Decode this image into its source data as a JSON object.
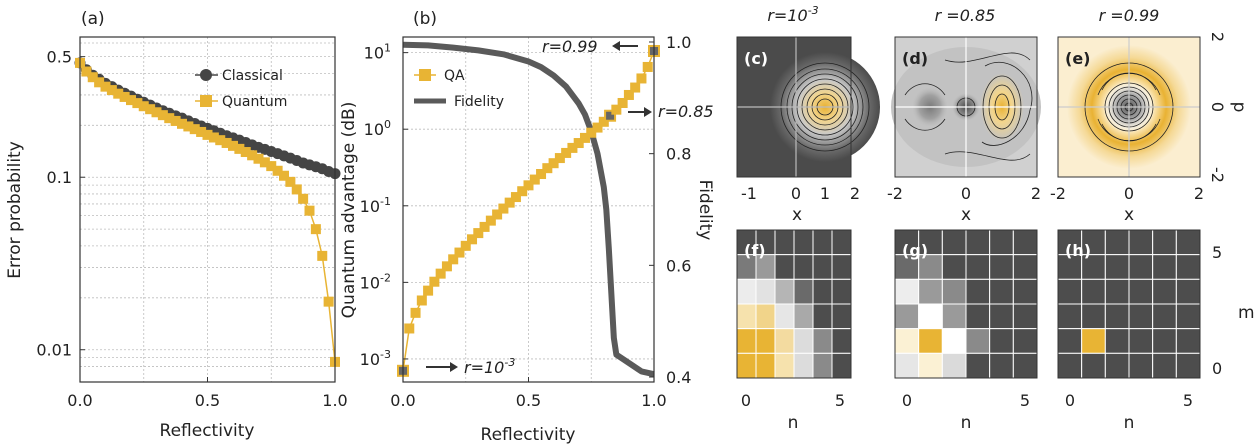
{
  "colors": {
    "classical": "#454545",
    "quantum": "#e8b434",
    "fidelity": "#5a5a5a",
    "dark_bg": "#4d4d4d"
  },
  "chart_data": [
    {
      "type": "line",
      "panel": "(a)",
      "xlabel": "Reflectivity",
      "ylabel": "Error probability",
      "yscale": "log",
      "xlim": [
        0,
        1
      ],
      "ylim": [
        0.0065,
        0.65
      ],
      "xticks": [
        "0.0",
        "0.5",
        "1.0"
      ],
      "yticks": [
        "0.5",
        "0.1",
        "0.01"
      ],
      "ytick_values": [
        0.5,
        0.1,
        0.01
      ],
      "grid": true,
      "legend_position": "top-right",
      "x": [
        0.0,
        0.025,
        0.05,
        0.075,
        0.1,
        0.125,
        0.15,
        0.175,
        0.2,
        0.225,
        0.25,
        0.275,
        0.3,
        0.325,
        0.35,
        0.375,
        0.4,
        0.425,
        0.45,
        0.475,
        0.5,
        0.525,
        0.55,
        0.575,
        0.6,
        0.625,
        0.65,
        0.675,
        0.7,
        0.725,
        0.75,
        0.775,
        0.8,
        0.825,
        0.85,
        0.875,
        0.9,
        0.925,
        0.95,
        0.975,
        1.0
      ],
      "series": [
        {
          "name": "Classical",
          "values": [
            0.46,
            0.42,
            0.39,
            0.37,
            0.35,
            0.335,
            0.32,
            0.307,
            0.295,
            0.283,
            0.272,
            0.262,
            0.252,
            0.243,
            0.235,
            0.227,
            0.22,
            0.212,
            0.205,
            0.198,
            0.192,
            0.186,
            0.18,
            0.174,
            0.169,
            0.164,
            0.159,
            0.154,
            0.149,
            0.145,
            0.141,
            0.137,
            0.133,
            0.129,
            0.125,
            0.121,
            0.118,
            0.115,
            0.112,
            0.108,
            0.105
          ]
        },
        {
          "name": "Quantum",
          "values": [
            0.46,
            0.41,
            0.38,
            0.355,
            0.335,
            0.32,
            0.305,
            0.292,
            0.28,
            0.269,
            0.258,
            0.248,
            0.238,
            0.229,
            0.22,
            0.212,
            0.204,
            0.197,
            0.19,
            0.183,
            0.176,
            0.17,
            0.164,
            0.158,
            0.152,
            0.146,
            0.14,
            0.134,
            0.128,
            0.122,
            0.116,
            0.109,
            0.102,
            0.094,
            0.085,
            0.075,
            0.064,
            0.05,
            0.035,
            0.019,
            0.0085
          ]
        }
      ]
    },
    {
      "type": "line",
      "panel": "(b)",
      "xlabel": "Reflectivity",
      "ylabel": "Quantum advantage (dB)",
      "y2label": "Fidelity",
      "yscale": "log",
      "xlim": [
        0,
        1
      ],
      "ylim": [
        0.0005,
        16
      ],
      "y2lim": [
        0.4,
        1.0
      ],
      "xticks": [
        "0.0",
        "0.5",
        "1.0"
      ],
      "ytick_values": [
        0.001,
        0.01,
        0.1,
        1,
        10
      ],
      "y2ticks": [
        "0.4",
        "0.6",
        "0.8",
        "1.0"
      ],
      "grid": true,
      "legend_position": "top-left",
      "x": [
        0.0,
        0.025,
        0.05,
        0.075,
        0.1,
        0.125,
        0.15,
        0.175,
        0.2,
        0.225,
        0.25,
        0.275,
        0.3,
        0.325,
        0.35,
        0.375,
        0.4,
        0.425,
        0.45,
        0.475,
        0.5,
        0.525,
        0.55,
        0.575,
        0.6,
        0.625,
        0.65,
        0.675,
        0.7,
        0.725,
        0.75,
        0.775,
        0.8,
        0.825,
        0.85,
        0.875,
        0.9,
        0.925,
        0.95,
        0.975,
        1.0
      ],
      "series": [
        {
          "name": "QA",
          "axis": "left",
          "values": [
            0.0007,
            0.0025,
            0.004,
            0.0058,
            0.0078,
            0.0102,
            0.013,
            0.0162,
            0.02,
            0.0245,
            0.03,
            0.0365,
            0.044,
            0.053,
            0.064,
            0.077,
            0.092,
            0.11,
            0.13,
            0.155,
            0.185,
            0.22,
            0.26,
            0.31,
            0.36,
            0.42,
            0.49,
            0.57,
            0.66,
            0.77,
            0.9,
            1.05,
            1.25,
            1.5,
            1.8,
            2.2,
            2.8,
            3.5,
            4.6,
            6.5,
            10.5
          ]
        },
        {
          "name": "Fidelity",
          "axis": "right",
          "x": [
            0.0,
            0.1,
            0.2,
            0.3,
            0.4,
            0.5,
            0.55,
            0.6,
            0.65,
            0.7,
            0.725,
            0.75,
            0.775,
            0.8,
            0.81,
            0.82,
            0.83,
            0.84,
            0.85,
            0.9,
            0.95,
            1.0
          ],
          "values": [
            0.995,
            0.994,
            0.99,
            0.985,
            0.978,
            0.965,
            0.955,
            0.94,
            0.92,
            0.89,
            0.87,
            0.84,
            0.8,
            0.74,
            0.7,
            0.63,
            0.55,
            0.47,
            0.44,
            0.425,
            0.41,
            0.405
          ]
        }
      ],
      "annotations": [
        "r=0.99",
        "r=0.85",
        "r=10⁻³"
      ]
    }
  ],
  "panel_a": {
    "tag": "(a)",
    "legend": [
      "Classical",
      "Quantum"
    ],
    "xlabel": "Reflectivity",
    "ylabel": "Error probability",
    "xticks": [
      "0.0",
      "0.5",
      "1.0"
    ],
    "yticks": [
      "0.5",
      "0.1",
      "0.01"
    ]
  },
  "panel_b": {
    "tag": "(b)",
    "legend": [
      "QA",
      "Fidelity"
    ],
    "xlabel": "Reflectivity",
    "ylabel": "Quantum advantage (dB)",
    "y2label": "Fidelity",
    "xticks": [
      "0.0",
      "0.5",
      "1.0"
    ],
    "y2ticks": [
      "0.4",
      "0.6",
      "0.8",
      "1.0"
    ],
    "ann_top": "r=0.99",
    "ann_mid": "r=0.85",
    "ann_low_prefix": "r=10",
    "ann_low_exp": "-3"
  },
  "wigner": {
    "titles": {
      "c_prefix": "r=10",
      "c_exp": "-3",
      "d": "r =0.85",
      "e": "r =0.99"
    },
    "tags": [
      "(c)",
      "(d)",
      "(e)"
    ],
    "xlabel": "x",
    "ylabel": "p",
    "c_xticks": [
      "-1",
      "0",
      "1",
      "2"
    ],
    "de_xticks": [
      "-2",
      "0",
      "2"
    ],
    "pticks": [
      "2",
      "0",
      "-2"
    ]
  },
  "matrix": {
    "tags": [
      "(f)",
      "(g)",
      "(h)"
    ],
    "xlabel": "n",
    "ylabel": "m",
    "xticks": [
      "0",
      "5"
    ],
    "yticks": [
      "5",
      "0"
    ]
  }
}
